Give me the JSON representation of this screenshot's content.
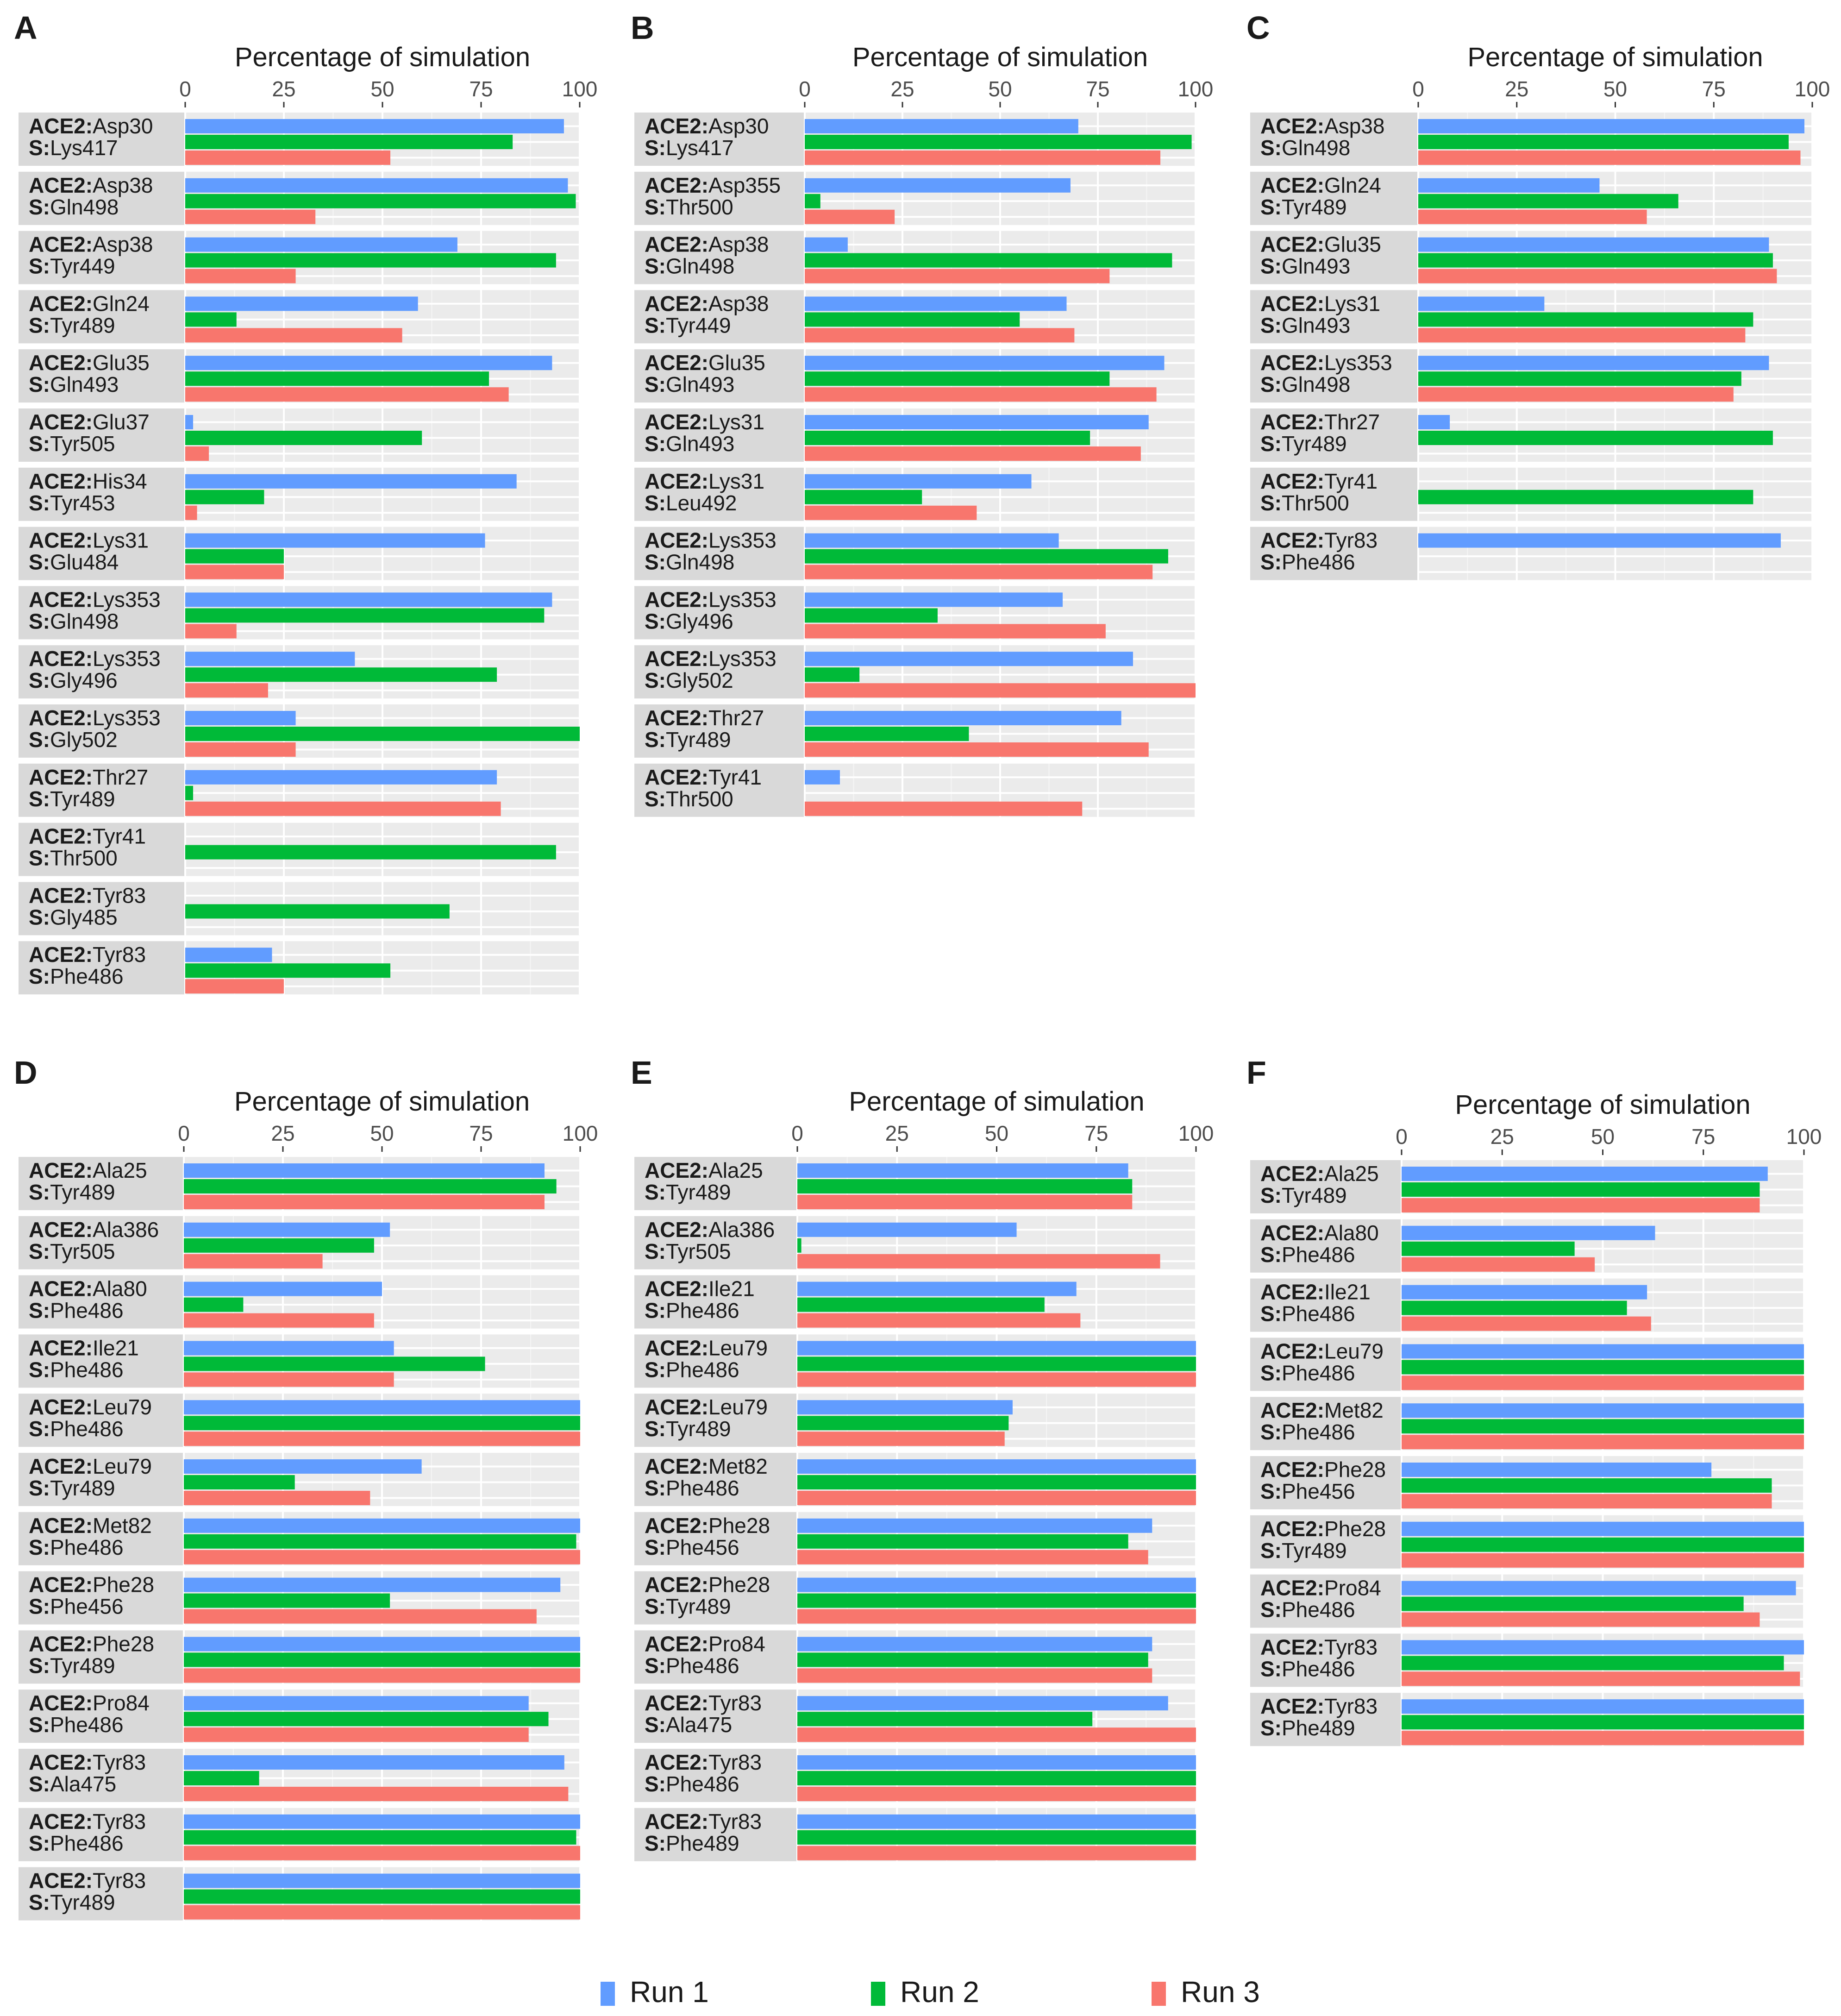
{
  "colors": {
    "run1": "#619CFF",
    "run2": "#00BA38",
    "run3": "#F8766D",
    "panel_bg": "#EBEBEB",
    "strip_bg": "#D9D9D9",
    "grid_major": "#FFFFFF",
    "grid_minor": "#F5F5F5",
    "text": "#1A1A1A",
    "axis_text": "#4D4D4D"
  },
  "legend": [
    {
      "key": "run1",
      "label": "Run 1"
    },
    {
      "key": "run2",
      "label": "Run 2"
    },
    {
      "key": "run3",
      "label": "Run 3"
    }
  ],
  "chart_data": [
    {
      "type": "bar",
      "panel": "A",
      "title": "Percentage of simulation",
      "xlim": [
        0,
        100
      ],
      "ticks": [
        "0",
        "25",
        "50",
        "75",
        "100"
      ],
      "rows": [
        {
          "prefix": "ACE2:",
          "ace2": "Asp30",
          "spike": "S:Lys417",
          "values": [
            96,
            83,
            52
          ]
        },
        {
          "prefix": "ACE2:",
          "ace2": "Asp38",
          "spike": "S:Gln498",
          "values": [
            97,
            99,
            33
          ]
        },
        {
          "prefix": "ACE2:",
          "ace2": "Asp38",
          "spike": "S:Tyr449",
          "values": [
            69,
            94,
            28
          ]
        },
        {
          "prefix": "ACE2:",
          "ace2": "Gln24",
          "spike": "S:Tyr489",
          "values": [
            59,
            13,
            55
          ]
        },
        {
          "prefix": "ACE2:",
          "ace2": "Glu35",
          "spike": "S:Gln493",
          "values": [
            93,
            77,
            82
          ]
        },
        {
          "prefix": "ACE2:",
          "ace2": "Glu37",
          "spike": "S:Tyr505",
          "values": [
            2,
            60,
            6
          ]
        },
        {
          "prefix": "ACE2:",
          "ace2": "His34",
          "spike": "S:Tyr453",
          "values": [
            84,
            20,
            3
          ]
        },
        {
          "prefix": "ACE2:",
          "ace2": "Lys31",
          "spike": "S:Glu484",
          "values": [
            76,
            25,
            25
          ]
        },
        {
          "prefix": "ACE2:",
          "ace2": "Lys353",
          "spike": "S:Gln498",
          "values": [
            93,
            91,
            13
          ]
        },
        {
          "prefix": "ACE2:",
          "ace2": "Lys353",
          "spike": "S:Gly496",
          "values": [
            43,
            79,
            21
          ]
        },
        {
          "prefix": "ACE2:",
          "ace2": "Lys353",
          "spike": "S:Gly502",
          "values": [
            28,
            100,
            28
          ]
        },
        {
          "prefix": "ACE2:",
          "ace2": "Thr27",
          "spike": "S:Tyr489",
          "values": [
            79,
            2,
            80
          ]
        },
        {
          "prefix": "ACE2:",
          "ace2": "Tyr41",
          "spike": "S:Thr500",
          "values": [
            0,
            94,
            0
          ]
        },
        {
          "prefix": "ACE2:",
          "ace2": "Tyr83",
          "spike": "S:Gly485",
          "values": [
            0,
            67,
            0
          ]
        },
        {
          "prefix": "ACE2:",
          "ace2": "Tyr83",
          "spike": "S:Phe486",
          "values": [
            22,
            52,
            25
          ]
        }
      ]
    },
    {
      "type": "bar",
      "panel": "B",
      "title": "Percentage of simulation",
      "xlim": [
        0,
        100
      ],
      "ticks": [
        "0",
        "25",
        "50",
        "75",
        "100"
      ],
      "rows": [
        {
          "prefix": "ACE2:",
          "ace2": "Asp30",
          "spike": "S:Lys417",
          "values": [
            70,
            99,
            91
          ]
        },
        {
          "prefix": "ACE2:",
          "ace2": "Asp355",
          "spike": "S:Thr500",
          "values": [
            68,
            4,
            23
          ]
        },
        {
          "prefix": "ACE2:",
          "ace2": "Asp38",
          "spike": "S:Gln498",
          "values": [
            11,
            94,
            78
          ]
        },
        {
          "prefix": "ACE2:",
          "ace2": "Asp38",
          "spike": "S:Tyr449",
          "values": [
            67,
            55,
            69
          ]
        },
        {
          "prefix": "ACE2:",
          "ace2": "Glu35",
          "spike": "S:Gln493",
          "values": [
            92,
            78,
            90
          ]
        },
        {
          "prefix": "ACE2:",
          "ace2": "Lys31",
          "spike": "S:Gln493",
          "values": [
            88,
            73,
            86
          ]
        },
        {
          "prefix": "ACE2:",
          "ace2": "Lys31",
          "spike": "S:Leu492",
          "values": [
            58,
            30,
            44
          ]
        },
        {
          "prefix": "ACE2:",
          "ace2": "Lys353",
          "spike": "S:Gln498",
          "values": [
            65,
            93,
            89
          ]
        },
        {
          "prefix": "ACE2:",
          "ace2": "Lys353",
          "spike": "S:Gly496",
          "values": [
            66,
            34,
            77
          ]
        },
        {
          "prefix": "ACE2:",
          "ace2": "Lys353",
          "spike": "S:Gly502",
          "values": [
            84,
            14,
            100
          ]
        },
        {
          "prefix": "ACE2:",
          "ace2": "Thr27",
          "spike": "S:Tyr489",
          "values": [
            81,
            42,
            88
          ]
        },
        {
          "prefix": "ACE2:",
          "ace2": "Tyr41",
          "spike": "S:Thr500",
          "values": [
            9,
            0,
            71
          ]
        }
      ]
    },
    {
      "type": "bar",
      "panel": "C",
      "title": "Percentage of simulation",
      "xlim": [
        0,
        100
      ],
      "ticks": [
        "0",
        "25",
        "50",
        "75",
        "100"
      ],
      "rows": [
        {
          "prefix": "ACE2:",
          "ace2": "Asp38",
          "spike": "S:Gln498",
          "values": [
            98,
            94,
            97
          ]
        },
        {
          "prefix": "ACE2:",
          "ace2": "Gln24",
          "spike": "S:Tyr489",
          "values": [
            46,
            66,
            58
          ]
        },
        {
          "prefix": "ACE2:",
          "ace2": "Glu35",
          "spike": "S:Gln493",
          "values": [
            89,
            90,
            91
          ]
        },
        {
          "prefix": "ACE2:",
          "ace2": "Lys31",
          "spike": "S:Gln493",
          "values": [
            32,
            85,
            83
          ]
        },
        {
          "prefix": "ACE2:",
          "ace2": "Lys353",
          "spike": "S:Gln498",
          "values": [
            89,
            82,
            80
          ]
        },
        {
          "prefix": "ACE2:",
          "ace2": "Thr27",
          "spike": "S:Tyr489",
          "values": [
            8,
            90,
            0
          ]
        },
        {
          "prefix": "ACE2:",
          "ace2": "Tyr41",
          "spike": "S:Thr500",
          "values": [
            0,
            85,
            0
          ]
        },
        {
          "prefix": "ACE2:",
          "ace2": "Tyr83",
          "spike": "S:Phe486",
          "values": [
            92,
            0,
            0
          ]
        }
      ]
    },
    {
      "type": "bar",
      "panel": "D",
      "title": "Percentage of simulation",
      "xlim": [
        0,
        100
      ],
      "ticks": [
        "0",
        "25",
        "50",
        "75",
        "100"
      ],
      "rows": [
        {
          "prefix": "ACE2:",
          "ace2": "Ala25",
          "spike": "S:Tyr489",
          "values": [
            91,
            94,
            91
          ]
        },
        {
          "prefix": "ACE2:",
          "ace2": "Ala386",
          "spike": "S:Tyr505",
          "values": [
            52,
            48,
            35
          ]
        },
        {
          "prefix": "ACE2:",
          "ace2": "Ala80",
          "spike": "S:Phe486",
          "values": [
            50,
            15,
            48
          ]
        },
        {
          "prefix": "ACE2:",
          "ace2": "Ile21",
          "spike": "S:Phe486",
          "values": [
            53,
            76,
            53
          ]
        },
        {
          "prefix": "ACE2:",
          "ace2": "Leu79",
          "spike": "S:Phe486",
          "values": [
            100,
            100,
            100
          ]
        },
        {
          "prefix": "ACE2:",
          "ace2": "Leu79",
          "spike": "S:Tyr489",
          "values": [
            60,
            28,
            47
          ]
        },
        {
          "prefix": "ACE2:",
          "ace2": "Met82",
          "spike": "S:Phe486",
          "values": [
            100,
            99,
            100
          ]
        },
        {
          "prefix": "ACE2:",
          "ace2": "Phe28",
          "spike": "S:Phe456",
          "values": [
            95,
            52,
            89
          ]
        },
        {
          "prefix": "ACE2:",
          "ace2": "Phe28",
          "spike": "S:Tyr489",
          "values": [
            100,
            100,
            100
          ]
        },
        {
          "prefix": "ACE2:",
          "ace2": "Pro84",
          "spike": "S:Phe486",
          "values": [
            87,
            92,
            87
          ]
        },
        {
          "prefix": "ACE2:",
          "ace2": "Tyr83",
          "spike": "S:Ala475",
          "values": [
            96,
            19,
            97
          ]
        },
        {
          "prefix": "ACE2:",
          "ace2": "Tyr83",
          "spike": "S:Phe486",
          "values": [
            100,
            99,
            100
          ]
        },
        {
          "prefix": "ACE2:",
          "ace2": "Tyr83",
          "spike": "S:Tyr489",
          "values": [
            100,
            100,
            100
          ]
        }
      ]
    },
    {
      "type": "bar",
      "panel": "E",
      "title": "Percentage of simulation",
      "xlim": [
        0,
        100
      ],
      "ticks": [
        "0",
        "25",
        "50",
        "75",
        "100"
      ],
      "rows": [
        {
          "prefix": "ACE2:",
          "ace2": "Ala25",
          "spike": "S:Tyr489",
          "values": [
            83,
            84,
            84
          ]
        },
        {
          "prefix": "ACE2:",
          "ace2": "Ala386",
          "spike": "S:Tyr505",
          "values": [
            55,
            1,
            91
          ]
        },
        {
          "prefix": "ACE2:",
          "ace2": "Ile21",
          "spike": "S:Phe486",
          "values": [
            70,
            62,
            71
          ]
        },
        {
          "prefix": "ACE2:",
          "ace2": "Leu79",
          "spike": "S:Phe486",
          "values": [
            100,
            100,
            100
          ]
        },
        {
          "prefix": "ACE2:",
          "ace2": "Leu79",
          "spike": "S:Tyr489",
          "values": [
            54,
            53,
            52
          ]
        },
        {
          "prefix": "ACE2:",
          "ace2": "Met82",
          "spike": "S:Phe486",
          "values": [
            100,
            100,
            100
          ]
        },
        {
          "prefix": "ACE2:",
          "ace2": "Phe28",
          "spike": "S:Phe456",
          "values": [
            89,
            83,
            88
          ]
        },
        {
          "prefix": "ACE2:",
          "ace2": "Phe28",
          "spike": "S:Tyr489",
          "values": [
            100,
            100,
            100
          ]
        },
        {
          "prefix": "ACE2:",
          "ace2": "Pro84",
          "spike": "S:Phe486",
          "values": [
            89,
            88,
            89
          ]
        },
        {
          "prefix": "ACE2:",
          "ace2": "Tyr83",
          "spike": "S:Ala475",
          "values": [
            93,
            74,
            100
          ]
        },
        {
          "prefix": "ACE2:",
          "ace2": "Tyr83",
          "spike": "S:Phe486",
          "values": [
            100,
            100,
            100
          ]
        },
        {
          "prefix": "ACE2:",
          "ace2": "Tyr83",
          "spike": "S:Phe489",
          "values": [
            100,
            100,
            100
          ]
        }
      ]
    },
    {
      "type": "bar",
      "panel": "F",
      "title": "Percentage of simulation",
      "xlim": [
        0,
        100
      ],
      "ticks": [
        "0",
        "25",
        "50",
        "75",
        "100"
      ],
      "rows": [
        {
          "prefix": "ACE2:",
          "ace2": "Ala25",
          "spike": "S:Tyr489",
          "values": [
            91,
            89,
            89
          ]
        },
        {
          "prefix": "ACE2:",
          "ace2": "Ala80",
          "spike": "S:Phe486",
          "values": [
            63,
            43,
            48
          ]
        },
        {
          "prefix": "ACE2:",
          "ace2": "Ile21",
          "spike": "S:Phe486",
          "values": [
            61,
            56,
            62
          ]
        },
        {
          "prefix": "ACE2:",
          "ace2": "Leu79",
          "spike": "S:Phe486",
          "values": [
            100,
            100,
            100
          ]
        },
        {
          "prefix": "ACE2:",
          "ace2": "Met82",
          "spike": "S:Phe486",
          "values": [
            100,
            100,
            100
          ]
        },
        {
          "prefix": "ACE2:",
          "ace2": "Phe28",
          "spike": "S:Phe456",
          "values": [
            77,
            92,
            92
          ]
        },
        {
          "prefix": "ACE2:",
          "ace2": "Phe28",
          "spike": "S:Tyr489",
          "values": [
            100,
            100,
            100
          ]
        },
        {
          "prefix": "ACE2:",
          "ace2": "Pro84",
          "spike": "S:Phe486",
          "values": [
            98,
            85,
            89
          ]
        },
        {
          "prefix": "ACE2:",
          "ace2": "Tyr83",
          "spike": "S:Phe486",
          "values": [
            100,
            95,
            99
          ]
        },
        {
          "prefix": "ACE2:",
          "ace2": "Tyr83",
          "spike": "S:Phe489",
          "values": [
            100,
            100,
            100
          ]
        }
      ]
    }
  ]
}
